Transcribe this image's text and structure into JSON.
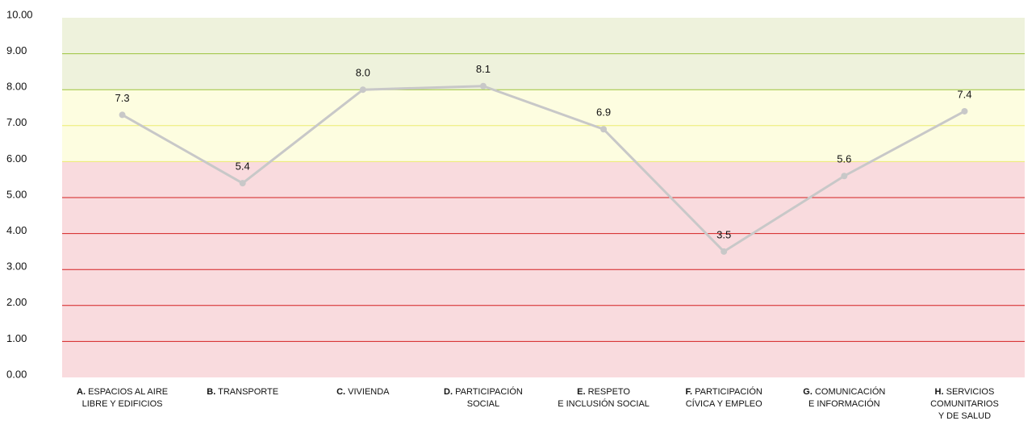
{
  "chart_data": {
    "type": "line",
    "categories": [
      {
        "prefix": "A.",
        "lines": [
          "ESPACIOS AL AIRE",
          "LIBRE Y EDIFICIOS"
        ]
      },
      {
        "prefix": "B.",
        "lines": [
          "TRANSPORTE"
        ]
      },
      {
        "prefix": "C.",
        "lines": [
          "VIVIENDA"
        ]
      },
      {
        "prefix": "D.",
        "lines": [
          "PARTICIPACIÓN",
          "SOCIAL"
        ]
      },
      {
        "prefix": "E.",
        "lines": [
          "RESPETO",
          "E INCLUSIÓN SOCIAL"
        ]
      },
      {
        "prefix": "F.",
        "lines": [
          "PARTICIPACIÓN",
          "CÍVICA Y EMPLEO"
        ]
      },
      {
        "prefix": "G.",
        "lines": [
          "COMUNICACIÓN",
          "E INFORMACIÓN"
        ]
      },
      {
        "prefix": "H.",
        "lines": [
          "SERVICIOS",
          "COMUNITARIOS",
          "Y DE SALUD"
        ]
      }
    ],
    "values": [
      7.3,
      5.4,
      8.0,
      8.1,
      6.9,
      3.5,
      5.6,
      7.4
    ],
    "value_labels": [
      "7.3",
      "5.4",
      "8.0",
      "8.1",
      "6.9",
      "3.5",
      "5.6",
      "7.4"
    ],
    "color": "#c8c8c8",
    "ylim": [
      0,
      10
    ],
    "yticks": [
      {
        "value": 0,
        "label": "0.00"
      },
      {
        "value": 1,
        "label": "1.00"
      },
      {
        "value": 2,
        "label": "2.00"
      },
      {
        "value": 3,
        "label": "3.00"
      },
      {
        "value": 4,
        "label": "4.00"
      },
      {
        "value": 5,
        "label": "5.00"
      },
      {
        "value": 6,
        "label": "6.00"
      },
      {
        "value": 7,
        "label": "7.00"
      },
      {
        "value": 8,
        "label": "8.00"
      },
      {
        "value": 9,
        "label": "9.00"
      },
      {
        "value": 10,
        "label": "10.00"
      }
    ],
    "grid": true,
    "bands": [
      {
        "from": 8,
        "to": 10,
        "color": "#eef2dc",
        "line_color": "#9cc33c"
      },
      {
        "from": 6,
        "to": 8,
        "color": "#fdfde0",
        "line_color": "#ecec70"
      },
      {
        "from": 0,
        "to": 6,
        "color": "#f9dbde",
        "line_color": "#d42020"
      }
    ]
  }
}
